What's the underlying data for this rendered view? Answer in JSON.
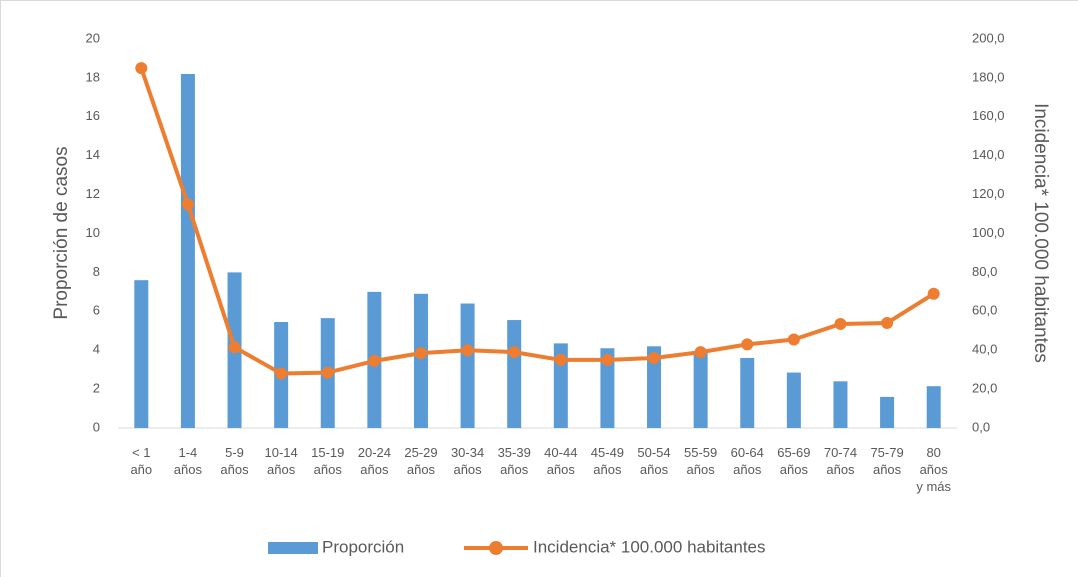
{
  "chart_data": {
    "type": "combo",
    "categories": [
      "< 1\naño",
      "1-4\naños",
      "5-9\naños",
      "10-14\naños",
      "15-19\naños",
      "20-24\naños",
      "25-29\naños",
      "30-34\naños",
      "35-39\naños",
      "40-44\naños",
      "45-49\naños",
      "50-54\naños",
      "55-59\naños",
      "60-64\naños",
      "65-69\naños",
      "70-74\naños",
      "75-79\naños",
      "80\naños\ny más"
    ],
    "series": [
      {
        "name": "Proporción",
        "type": "bar",
        "color": "#5b9bd5",
        "values": [
          7.6,
          18.2,
          8.0,
          5.45,
          5.65,
          7.0,
          6.9,
          6.4,
          5.55,
          4.35,
          4.1,
          4.2,
          3.9,
          3.6,
          2.85,
          2.4,
          1.6,
          2.15
        ]
      },
      {
        "name": "Incidencia* 100.000 habitantes",
        "type": "line",
        "axis": "y2",
        "color": "#ed7d31",
        "values": [
          185,
          115,
          41.5,
          28,
          28.5,
          34.5,
          38.5,
          40,
          39,
          35,
          35,
          36,
          39,
          43,
          45.5,
          53.5,
          54,
          69
        ]
      }
    ],
    "ylabel": "Proporción de casos",
    "y2label": "Incidencia* 100.000 habitantes",
    "ylim": [
      0,
      20
    ],
    "yticks": [
      0,
      2,
      4,
      6,
      8,
      10,
      12,
      14,
      16,
      18,
      20
    ],
    "y2lim": [
      0,
      200
    ],
    "y2ticks": [
      {
        "value": 0,
        "label": "0,0"
      },
      {
        "value": 20,
        "label": "20,0"
      },
      {
        "value": 40,
        "label": "40,0"
      },
      {
        "value": 60,
        "label": "60,0"
      },
      {
        "value": 80,
        "label": "80,0"
      },
      {
        "value": 100,
        "label": "100,0"
      },
      {
        "value": 120,
        "label": "120,0"
      },
      {
        "value": 140,
        "label": "140,0"
      },
      {
        "value": 160,
        "label": "160,0"
      },
      {
        "value": 180,
        "label": "180,0"
      },
      {
        "value": 200,
        "label": "200,0"
      }
    ],
    "legend": "bottom"
  }
}
